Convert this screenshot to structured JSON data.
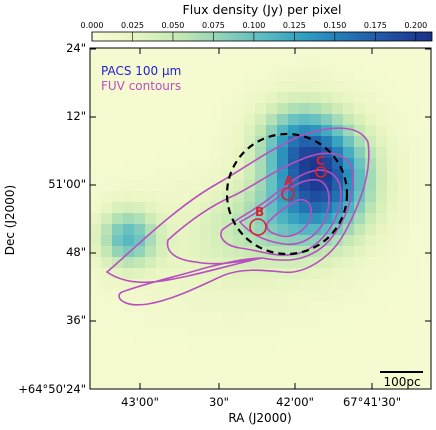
{
  "chart_data": {
    "type": "heatmap",
    "colorbar": {
      "title": "Flux density (Jy) per pixel",
      "ticks": [
        "0.000",
        "0.025",
        "0.050",
        "0.075",
        "0.100",
        "0.125",
        "0.150",
        "0.175",
        "0.200"
      ],
      "vmin": 0.0,
      "vmax": 0.21,
      "colors": [
        "#fafcd6",
        "#e7f5c1",
        "#c6e9b4",
        "#93d3b8",
        "#5cbcc2",
        "#2f9ec1",
        "#2475b4",
        "#2150a3",
        "#1b2f88"
      ]
    },
    "xlabel": "RA (J2000)",
    "ylabel": "Dec (J2000)",
    "xticks": [
      "43'00\"",
      "30\"",
      "42'00\"",
      "67°41'30\""
    ],
    "yticks": [
      "+64°50'24\"",
      "36\"",
      "48\"",
      "51'00\"",
      "12\"",
      "24\""
    ],
    "legend": {
      "entries": [
        {
          "label": "PACS 100 μm",
          "color": "#1f1fcf"
        },
        {
          "label": "FUV contours",
          "color": "#b84fbf"
        }
      ]
    },
    "sources": [
      {
        "label": "A",
        "color": "#d4242e"
      },
      {
        "label": "B",
        "color": "#d4242e"
      },
      {
        "label": "C",
        "color": "#d4242e"
      }
    ],
    "scalebar": {
      "label": "100pc"
    },
    "contour_color": "#b84fbf",
    "aperture_style": "black dashed circle"
  }
}
